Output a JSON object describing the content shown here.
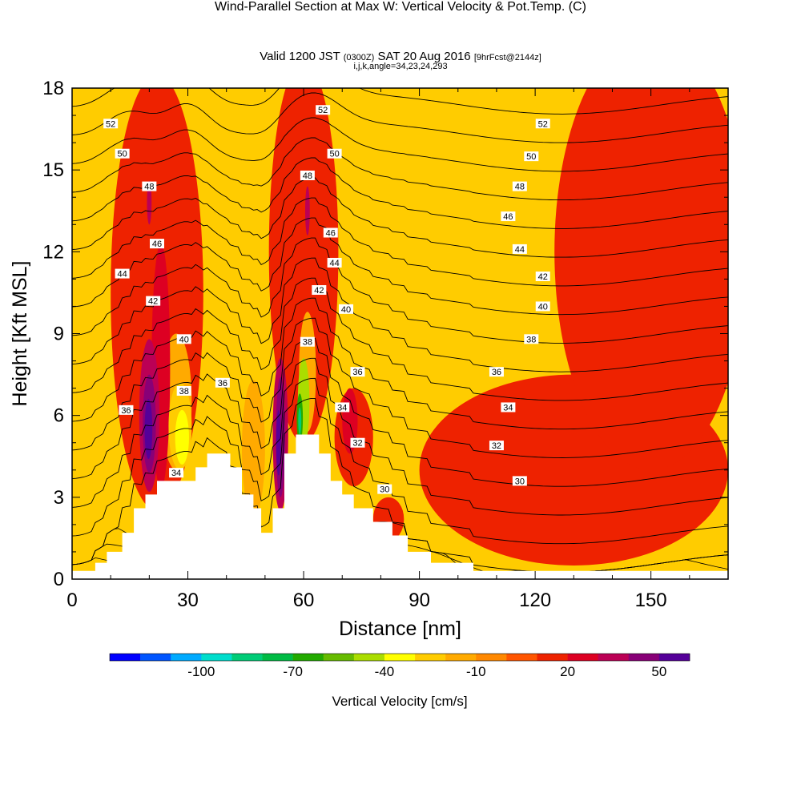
{
  "header": {
    "title": "Wind-Parallel Section at Max W: Vertical Velocity & Pot.Temp.",
    "title_units": "(C)",
    "subtitle_main": "Valid 1200 JST",
    "subtitle_utc": "(0300Z)",
    "subtitle_date": "SAT 20 Aug 2016",
    "subtitle_fcst": "[9hrFcst@2144z]",
    "ijk": "i,j,k,angle=34,23,24,293"
  },
  "chart_data": {
    "type": "heatmap",
    "xlabel": "Distance [nm]",
    "ylabel": "Height [Kft MSL]",
    "xlim": [
      0,
      170
    ],
    "ylim": [
      0,
      18
    ],
    "x_ticks": [
      "0",
      "30",
      "60",
      "90",
      "120",
      "150"
    ],
    "y_ticks": [
      "0",
      "3",
      "6",
      "9",
      "12",
      "15",
      "18"
    ],
    "background_color": "#FFCC00",
    "terrain": [
      [
        0,
        0.3
      ],
      [
        6,
        0.3
      ],
      [
        6,
        0.6
      ],
      [
        9,
        0.6
      ],
      [
        9,
        1.0
      ],
      [
        13,
        1.0
      ],
      [
        13,
        1.7
      ],
      [
        16,
        1.7
      ],
      [
        16,
        2.6
      ],
      [
        19,
        2.6
      ],
      [
        19,
        3.1
      ],
      [
        22,
        3.1
      ],
      [
        22,
        3.6
      ],
      [
        32,
        3.6
      ],
      [
        32,
        4.1
      ],
      [
        35,
        4.1
      ],
      [
        35,
        4.6
      ],
      [
        41,
        4.6
      ],
      [
        41,
        4.1
      ],
      [
        44,
        4.1
      ],
      [
        44,
        3.1
      ],
      [
        47,
        3.1
      ],
      [
        47,
        2.6
      ],
      [
        49,
        2.6
      ],
      [
        49,
        1.7
      ],
      [
        52,
        1.7
      ],
      [
        52,
        2.6
      ],
      [
        55,
        2.6
      ],
      [
        55,
        4.6
      ],
      [
        58,
        4.6
      ],
      [
        58,
        5.3
      ],
      [
        64,
        5.3
      ],
      [
        64,
        4.6
      ],
      [
        67,
        4.6
      ],
      [
        67,
        3.6
      ],
      [
        70,
        3.6
      ],
      [
        70,
        3.1
      ],
      [
        73,
        3.1
      ],
      [
        73,
        2.6
      ],
      [
        78,
        2.6
      ],
      [
        78,
        2.1
      ],
      [
        83,
        2.1
      ],
      [
        83,
        1.6
      ],
      [
        87,
        1.6
      ],
      [
        87,
        1.0
      ],
      [
        93,
        1.0
      ],
      [
        93,
        0.6
      ],
      [
        104,
        0.6
      ],
      [
        104,
        0.3
      ],
      [
        170,
        0.3
      ]
    ],
    "velocity_regions": [
      {
        "level": 10,
        "cx": 22,
        "cy": 10.5,
        "rx": 12,
        "ry": 8
      },
      {
        "level": 10,
        "cx": 60,
        "cy": 12,
        "rx": 9,
        "ry": 7
      },
      {
        "level": 10,
        "cx": 73,
        "cy": 5.2,
        "rx": 5,
        "ry": 1.8
      },
      {
        "level": 10,
        "cx": 82,
        "cy": 2.2,
        "rx": 4,
        "ry": 0.8
      },
      {
        "level": 10,
        "cx": 130,
        "cy": 4,
        "rx": 40,
        "ry": 3.5
      },
      {
        "level": 10,
        "cx": 150,
        "cy": 12,
        "rx": 25,
        "ry": 8
      },
      {
        "level": -20,
        "cx": 47,
        "cy": 4.8,
        "rx": 3,
        "ry": 2.5
      },
      {
        "level": -20,
        "cx": 27,
        "cy": 6.5,
        "rx": 4,
        "ry": 2.5
      },
      {
        "level": 20,
        "cx": 23,
        "cy": 7.8,
        "rx": 2.4,
        "ry": 4.5
      },
      {
        "level": 20,
        "cx": 72,
        "cy": 5.8,
        "rx": 2,
        "ry": 1.2
      },
      {
        "level": 30,
        "cx": 20,
        "cy": 6.0,
        "rx": 2.6,
        "ry": 2.8
      },
      {
        "level": 30,
        "cx": 54,
        "cy": 5.3,
        "rx": 2,
        "ry": 2.8
      },
      {
        "level": 30,
        "cx": 20,
        "cy": 13.8,
        "rx": 0.6,
        "ry": 0.8
      },
      {
        "level": 30,
        "cx": 61,
        "cy": 13.5,
        "rx": 0.6,
        "ry": 0.9
      },
      {
        "level": 40,
        "cx": 20,
        "cy": 5.7,
        "rx": 1.7,
        "ry": 1.8
      },
      {
        "level": 40,
        "cx": 54,
        "cy": 5.2,
        "rx": 1.2,
        "ry": 2.2
      },
      {
        "level": 50,
        "cx": 19.8,
        "cy": 5.5,
        "rx": 1.0,
        "ry": 1.1
      },
      {
        "level": 50,
        "cx": 53.5,
        "cy": 5.0,
        "rx": 0.6,
        "ry": 1.2
      },
      {
        "level": 60,
        "cx": 19.8,
        "cy": 5.7,
        "rx": 0.5,
        "ry": 0.6
      },
      {
        "level": -30,
        "cx": 28,
        "cy": 5.6,
        "rx": 3,
        "ry": 1.6
      },
      {
        "level": -40,
        "cx": 28.5,
        "cy": 5.2,
        "rx": 1.8,
        "ry": 1.0
      },
      {
        "level": -20,
        "cx": 61,
        "cy": 7.6,
        "rx": 2.2,
        "ry": 2.2
      },
      {
        "level": -50,
        "cx": 60,
        "cy": 6.5,
        "rx": 1.5,
        "ry": 1.6
      },
      {
        "level": -70,
        "cx": 59,
        "cy": 5.9,
        "rx": 0.8,
        "ry": 0.9
      },
      {
        "level": -90,
        "cx": 59,
        "cy": 5.8,
        "rx": 0.4,
        "ry": 0.5
      }
    ],
    "contour_labels": [
      {
        "text": "52",
        "x": 10,
        "y": 16.7
      },
      {
        "text": "50",
        "x": 13,
        "y": 15.6
      },
      {
        "text": "48",
        "x": 20,
        "y": 14.4
      },
      {
        "text": "46",
        "x": 22,
        "y": 12.3
      },
      {
        "text": "44",
        "x": 13,
        "y": 11.2
      },
      {
        "text": "42",
        "x": 21,
        "y": 10.2
      },
      {
        "text": "40",
        "x": 29,
        "y": 8.8
      },
      {
        "text": "38",
        "x": 29,
        "y": 6.9
      },
      {
        "text": "36",
        "x": 14,
        "y": 6.2
      },
      {
        "text": "36",
        "x": 39,
        "y": 7.2
      },
      {
        "text": "34",
        "x": 27,
        "y": 3.9
      },
      {
        "text": "52",
        "x": 65,
        "y": 17.2
      },
      {
        "text": "50",
        "x": 68,
        "y": 15.6
      },
      {
        "text": "48",
        "x": 61,
        "y": 14.8
      },
      {
        "text": "46",
        "x": 67,
        "y": 12.7
      },
      {
        "text": "44",
        "x": 68,
        "y": 11.6
      },
      {
        "text": "42",
        "x": 64,
        "y": 10.6
      },
      {
        "text": "40",
        "x": 71,
        "y": 9.9
      },
      {
        "text": "38",
        "x": 61,
        "y": 8.7
      },
      {
        "text": "36",
        "x": 74,
        "y": 7.6
      },
      {
        "text": "34",
        "x": 70,
        "y": 6.3
      },
      {
        "text": "32",
        "x": 74,
        "y": 5.0
      },
      {
        "text": "30",
        "x": 81,
        "y": 3.3
      },
      {
        "text": "52",
        "x": 122,
        "y": 16.7
      },
      {
        "text": "50",
        "x": 119,
        "y": 15.5
      },
      {
        "text": "48",
        "x": 116,
        "y": 14.4
      },
      {
        "text": "46",
        "x": 113,
        "y": 13.3
      },
      {
        "text": "44",
        "x": 116,
        "y": 12.1
      },
      {
        "text": "42",
        "x": 122,
        "y": 11.1
      },
      {
        "text": "40",
        "x": 122,
        "y": 10.0
      },
      {
        "text": "38",
        "x": 119,
        "y": 8.8
      },
      {
        "text": "36",
        "x": 110,
        "y": 7.6
      },
      {
        "text": "34",
        "x": 113,
        "y": 6.3
      },
      {
        "text": "32",
        "x": 110,
        "y": 4.9
      },
      {
        "text": "30",
        "x": 116,
        "y": 3.6
      }
    ],
    "colorbar": {
      "label": "Vertical Velocity [cm/s]",
      "tick_labels": [
        "-100",
        "-70",
        "-40",
        "-10",
        "20",
        "50"
      ],
      "colors": [
        "#0000FF",
        "#0055FF",
        "#00AAFF",
        "#00DDCC",
        "#00CC77",
        "#00BB44",
        "#22AA00",
        "#66BB00",
        "#AADD00",
        "#FFFF00",
        "#FFCC00",
        "#FFAA00",
        "#FF8800",
        "#FF5500",
        "#EE2200",
        "#DD0022",
        "#BB0055",
        "#880077",
        "#550099"
      ]
    }
  }
}
